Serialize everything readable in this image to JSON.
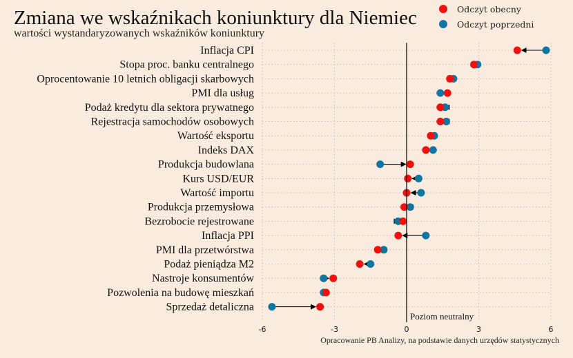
{
  "chart_data": {
    "type": "scatter",
    "title": "Zmiana we wskaźnikach koniunktury dla Niemiec",
    "subtitle": "wartości wystandaryzowanych wskaźników koniunktury",
    "xlim": [
      -6,
      6
    ],
    "xticks": [
      -6,
      -3,
      0,
      3,
      6
    ],
    "grid": true,
    "legend_position": "top-right",
    "reference_line": {
      "x": 0,
      "label": "Poziom neutralny"
    },
    "source": "Opracowanie PB Analizy, na podstawie danych urzędów statystycznych",
    "categories": [
      "Inflacja CPI",
      "Stopa proc. banku centralnego",
      "Oprocentowanie 10 letnich obligacji skarbowych",
      "PMI dla usług",
      "Podaż kredytu dla sektora prywatnego",
      "Rejestracja samochodów osobowych",
      "Wartość eksportu",
      "Indeks DAX",
      "Produkcja budowlana",
      "Kurs USD/EUR",
      "Wartość importu",
      "Produkcja przemysłowa",
      "Bezrobocie rejestrowane",
      "Inflacja PPI",
      "PMI dla przetwórstwa",
      "Podaż pieniądza M2",
      "Nastroje konsumentów",
      "Pozwolenia na budowę mieszkań",
      "Sprzedaż detaliczna"
    ],
    "series": [
      {
        "name": "Odczyt obecny",
        "color": "#f0110e",
        "values": [
          4.6,
          2.8,
          1.8,
          1.7,
          1.4,
          1.4,
          1.0,
          0.8,
          0.15,
          0.05,
          0.0,
          -0.1,
          -0.15,
          -0.35,
          -1.2,
          -1.95,
          -3.05,
          -3.35,
          -3.6
        ]
      },
      {
        "name": "Odczyt poprzedni",
        "color": "#0e76a0",
        "values": [
          5.8,
          2.95,
          1.95,
          1.4,
          1.6,
          1.65,
          1.15,
          1.1,
          -1.1,
          0.5,
          0.6,
          0.15,
          -0.35,
          0.8,
          -0.95,
          -1.5,
          -3.45,
          -3.45,
          -5.6
        ]
      }
    ]
  }
}
